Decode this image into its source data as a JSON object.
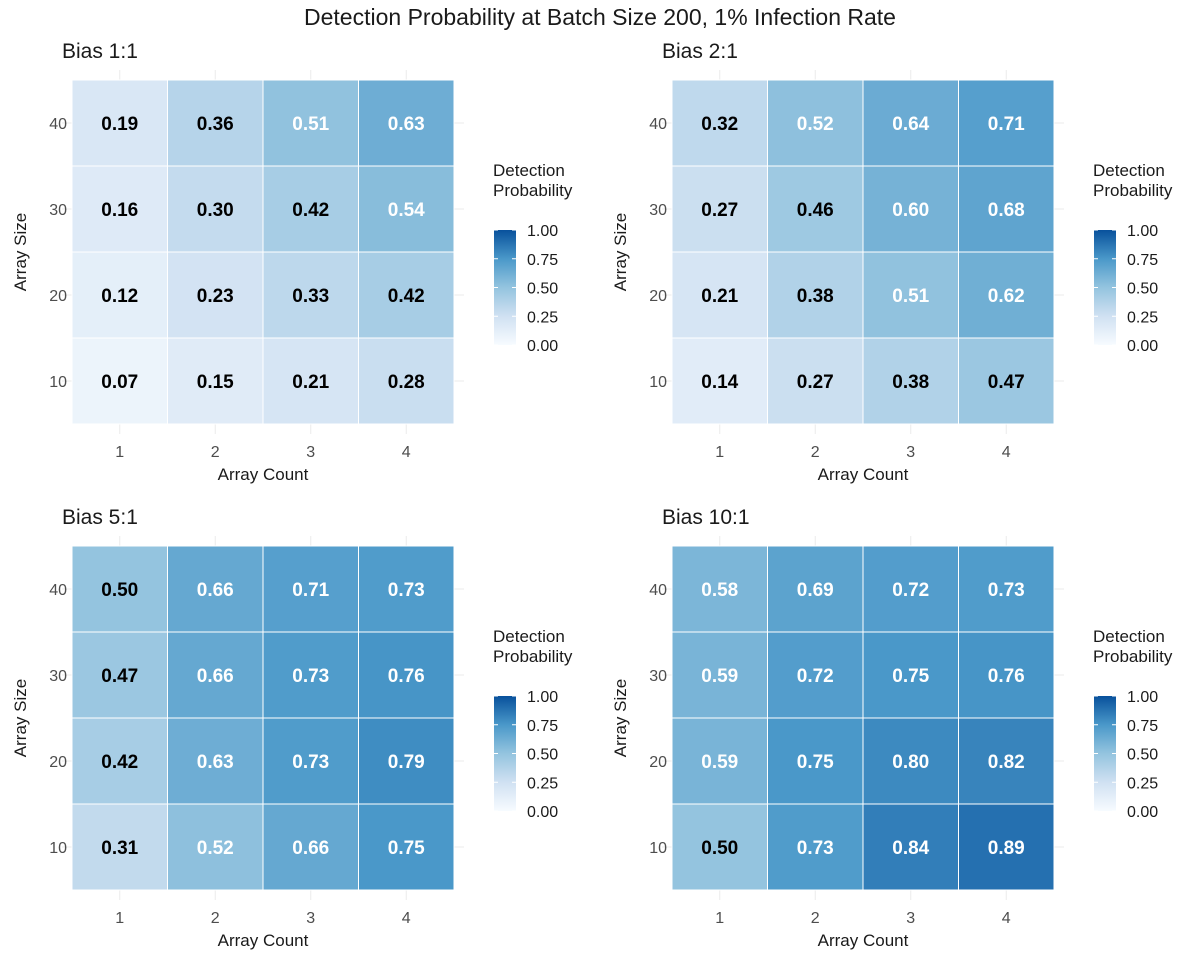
{
  "title": "Detection Probability at Batch Size 200, 1% Infection Rate",
  "chart_data": [
    {
      "type": "heatmap",
      "title": "Bias 1:1",
      "xlabel": "Array Count",
      "ylabel": "Array Size",
      "x": [
        "1",
        "2",
        "3",
        "4"
      ],
      "y": [
        "10",
        "20",
        "30",
        "40"
      ],
      "values": [
        [
          0.07,
          0.15,
          0.21,
          0.28
        ],
        [
          0.12,
          0.23,
          0.33,
          0.42
        ],
        [
          0.16,
          0.3,
          0.42,
          0.54
        ],
        [
          0.19,
          0.36,
          0.51,
          0.63
        ]
      ],
      "legend": {
        "title": [
          "Detection",
          "Probability"
        ],
        "ticks": [
          "1.00",
          "0.75",
          "0.50",
          "0.25",
          "0.00"
        ],
        "range": [
          0,
          1
        ],
        "placement": "right"
      }
    },
    {
      "type": "heatmap",
      "title": "Bias 2:1",
      "xlabel": "Array Count",
      "ylabel": "Array Size",
      "x": [
        "1",
        "2",
        "3",
        "4"
      ],
      "y": [
        "10",
        "20",
        "30",
        "40"
      ],
      "values": [
        [
          0.14,
          0.27,
          0.38,
          0.47
        ],
        [
          0.21,
          0.38,
          0.51,
          0.62
        ],
        [
          0.27,
          0.46,
          0.6,
          0.68
        ],
        [
          0.32,
          0.52,
          0.64,
          0.71
        ]
      ],
      "legend": {
        "title": [
          "Detection",
          "Probability"
        ],
        "ticks": [
          "1.00",
          "0.75",
          "0.50",
          "0.25",
          "0.00"
        ],
        "range": [
          0,
          1
        ],
        "placement": "right"
      }
    },
    {
      "type": "heatmap",
      "title": "Bias 5:1",
      "xlabel": "Array Count",
      "ylabel": "Array Size",
      "x": [
        "1",
        "2",
        "3",
        "4"
      ],
      "y": [
        "10",
        "20",
        "30",
        "40"
      ],
      "values": [
        [
          0.31,
          0.52,
          0.66,
          0.75
        ],
        [
          0.42,
          0.63,
          0.73,
          0.79
        ],
        [
          0.47,
          0.66,
          0.73,
          0.76
        ],
        [
          0.5,
          0.66,
          0.71,
          0.73
        ]
      ],
      "legend": {
        "title": [
          "Detection",
          "Probability"
        ],
        "ticks": [
          "1.00",
          "0.75",
          "0.50",
          "0.25",
          "0.00"
        ],
        "range": [
          0,
          1
        ],
        "placement": "right"
      }
    },
    {
      "type": "heatmap",
      "title": "Bias 10:1",
      "xlabel": "Array Count",
      "ylabel": "Array Size",
      "x": [
        "1",
        "2",
        "3",
        "4"
      ],
      "y": [
        "10",
        "20",
        "30",
        "40"
      ],
      "values": [
        [
          0.5,
          0.73,
          0.84,
          0.89
        ],
        [
          0.59,
          0.75,
          0.8,
          0.82
        ],
        [
          0.59,
          0.72,
          0.75,
          0.76
        ],
        [
          0.58,
          0.69,
          0.72,
          0.73
        ]
      ],
      "legend": {
        "title": [
          "Detection",
          "Probability"
        ],
        "ticks": [
          "1.00",
          "0.75",
          "0.50",
          "0.25",
          "0.00"
        ],
        "range": [
          0,
          1
        ],
        "placement": "right"
      }
    }
  ],
  "colors": {
    "scale_low": "#f7fbff",
    "scale_high": "#08519c",
    "grid": "#ebebeb",
    "text_dark": "#000000",
    "text_light": "#ffffff"
  }
}
